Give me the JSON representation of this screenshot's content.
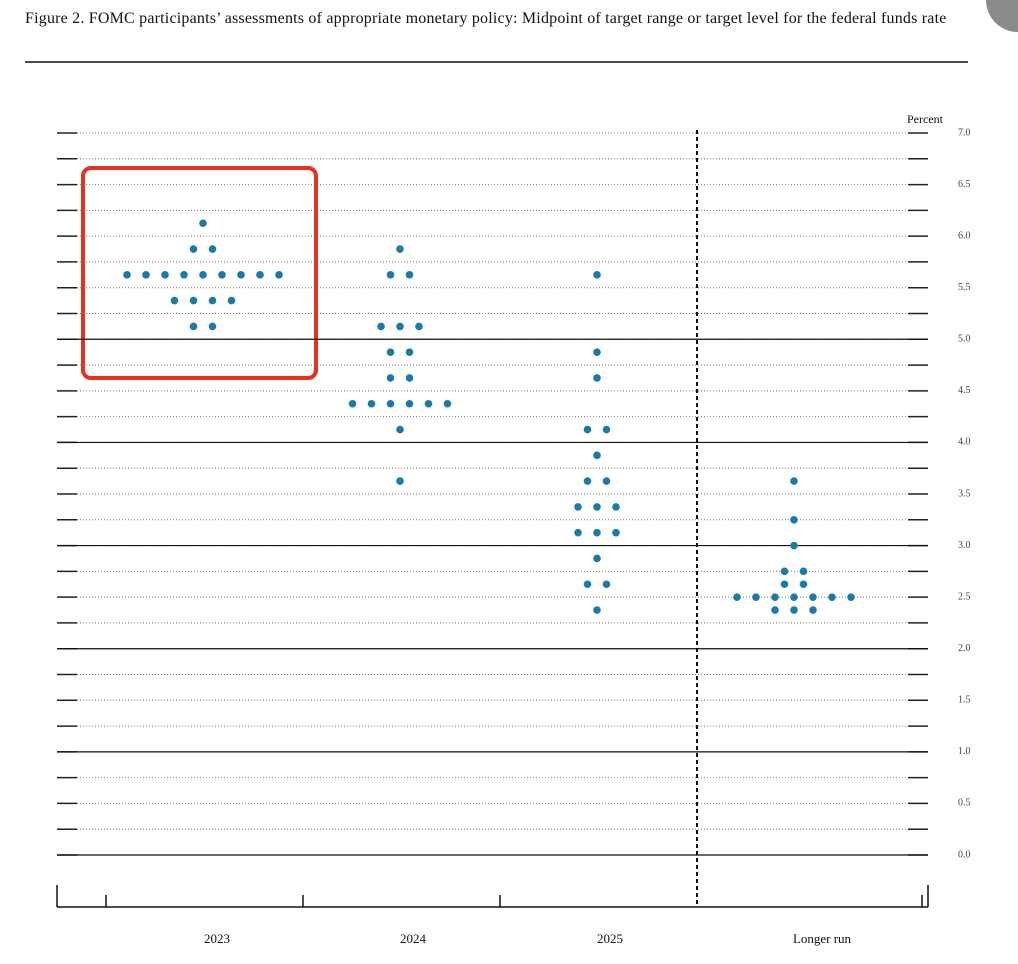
{
  "chart_data": {
    "type": "dot",
    "title": "Figure 2.  FOMC participants’ assessments of appropriate monetary policy: Midpoint of target range or target level for the federal funds rate",
    "y_label": "Percent",
    "categories": [
      "2023",
      "2024",
      "2025",
      "Longer run"
    ],
    "values": [
      [
        6.125,
        5.875,
        5.875,
        5.625,
        5.625,
        5.625,
        5.625,
        5.625,
        5.625,
        5.625,
        5.625,
        5.625,
        5.375,
        5.375,
        5.375,
        5.375,
        5.125,
        5.125
      ],
      [
        5.875,
        5.625,
        5.625,
        5.125,
        5.125,
        5.125,
        4.875,
        4.875,
        4.625,
        4.625,
        4.375,
        4.375,
        4.375,
        4.375,
        4.375,
        4.375,
        4.125,
        3.625
      ],
      [
        5.625,
        4.875,
        4.625,
        4.125,
        4.125,
        3.875,
        3.625,
        3.625,
        3.375,
        3.375,
        3.375,
        3.125,
        3.125,
        3.125,
        2.875,
        2.625,
        2.625,
        2.375
      ],
      [
        3.625,
        3.25,
        3.0,
        2.75,
        2.75,
        2.625,
        2.625,
        2.5,
        2.5,
        2.5,
        2.5,
        2.5,
        2.5,
        2.5,
        2.375,
        2.375,
        2.375
      ]
    ],
    "color": "#1b7ba6",
    "ylim": [
      0,
      7
    ],
    "yticks": [
      {
        "value": 0,
        "label": "0.0"
      },
      {
        "value": 0.5,
        "label": "0.5"
      },
      {
        "value": 1,
        "label": "1.0"
      },
      {
        "value": 1.5,
        "label": "1.5"
      },
      {
        "value": 2,
        "label": "2.0"
      },
      {
        "value": 2.5,
        "label": "2.5"
      },
      {
        "value": 3,
        "label": "3.0"
      },
      {
        "value": 3.5,
        "label": "3.5"
      },
      {
        "value": 4,
        "label": "4.0"
      },
      {
        "value": 4.5,
        "label": "4.5"
      },
      {
        "value": 5,
        "label": "5.0"
      },
      {
        "value": 5.5,
        "label": "5.5"
      },
      {
        "value": 6,
        "label": "6.0"
      },
      {
        "value": 6.5,
        "label": "6.5"
      },
      {
        "value": 7,
        "label": "7.0"
      }
    ],
    "minor_grid_step": 0.25,
    "grid": true
  }
}
